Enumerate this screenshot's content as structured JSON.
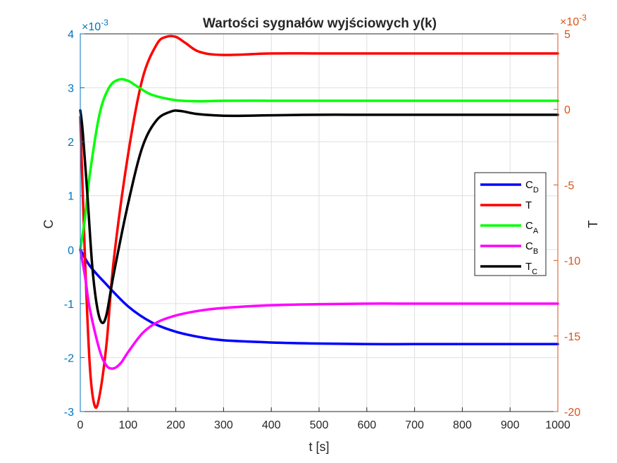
{
  "chart_data": {
    "type": "line",
    "title": "Wartości sygnałów wyjściowych y(k)",
    "xlabel": "t [s]",
    "xlim": [
      0,
      1000
    ],
    "x_ticks": [
      "0",
      "100",
      "200",
      "300",
      "400",
      "500",
      "600",
      "700",
      "800",
      "900",
      "1000"
    ],
    "grid": true,
    "legend_position": "right",
    "y_left": {
      "label": "C",
      "exponent_label": "×10",
      "exponent_power": "-3",
      "lim": [
        -3,
        4
      ],
      "ticks": [
        "-3",
        "-2",
        "-1",
        "0",
        "1",
        "2",
        "3",
        "4"
      ],
      "color": "#0072BD"
    },
    "y_right": {
      "label": "T",
      "exponent_label": "×10",
      "exponent_power": "-3",
      "lim": [
        -20,
        5
      ],
      "ticks": [
        "-20",
        "-15",
        "-10",
        "-5",
        "0",
        "5"
      ],
      "color": "#D95319"
    },
    "legend": [
      {
        "main": "C",
        "sub": "D",
        "color": "#0000FF"
      },
      {
        "main": "T",
        "sub": "",
        "color": "#FF0000"
      },
      {
        "main": "C",
        "sub": "A",
        "color": "#00FF00"
      },
      {
        "main": "C",
        "sub": "B",
        "color": "#FF00FF"
      },
      {
        "main": "T",
        "sub": "C",
        "color": "#000000"
      }
    ],
    "series": [
      {
        "axis": "left",
        "unit": "1e-3",
        "color": "#0000FF",
        "x": [
          0,
          20,
          50,
          100,
          150,
          200,
          250,
          300,
          400,
          500,
          600,
          700,
          800,
          900,
          1000
        ],
        "y": [
          0,
          -0.3,
          -0.6,
          -1.05,
          -1.35,
          -1.52,
          -1.62,
          -1.68,
          -1.72,
          -1.74,
          -1.75,
          -1.75,
          -1.75,
          -1.75,
          -1.75
        ]
      },
      {
        "axis": "right",
        "unit": "1e-3",
        "color": "#FF0000",
        "x": [
          0,
          10,
          20,
          30,
          40,
          55,
          70,
          100,
          130,
          160,
          180,
          200,
          220,
          250,
          300,
          400,
          500,
          600,
          700,
          800,
          900,
          1000
        ],
        "y": [
          -0.5,
          -10,
          -17,
          -19.6,
          -19,
          -15.5,
          -10,
          -3,
          2,
          4.3,
          4.8,
          4.8,
          4.4,
          3.8,
          3.6,
          3.7,
          3.7,
          3.7,
          3.7,
          3.7,
          3.7,
          3.7
        ]
      },
      {
        "axis": "left",
        "unit": "1e-3",
        "color": "#00FF00",
        "x": [
          0,
          10,
          20,
          40,
          60,
          80,
          100,
          120,
          150,
          200,
          250,
          300,
          400,
          500,
          600,
          700,
          800,
          900,
          1000
        ],
        "y": [
          0,
          0.6,
          1.4,
          2.5,
          3.0,
          3.15,
          3.13,
          3.02,
          2.87,
          2.77,
          2.75,
          2.76,
          2.76,
          2.76,
          2.76,
          2.76,
          2.76,
          2.76,
          2.76
        ]
      },
      {
        "axis": "left",
        "unit": "1e-3",
        "color": "#FF00FF",
        "x": [
          0,
          10,
          20,
          40,
          55,
          70,
          85,
          100,
          130,
          160,
          200,
          250,
          300,
          400,
          500,
          600,
          700,
          800,
          900,
          1000
        ],
        "y": [
          0,
          -0.5,
          -1.1,
          -1.85,
          -2.15,
          -2.2,
          -2.1,
          -1.9,
          -1.55,
          -1.35,
          -1.22,
          -1.13,
          -1.08,
          -1.03,
          -1.01,
          -1.0,
          -1.0,
          -1.0,
          -1.0,
          -1.0
        ]
      },
      {
        "axis": "left",
        "unit": "1e-3",
        "color": "#000000",
        "x": [
          0,
          5,
          15,
          25,
          35,
          45,
          55,
          70,
          100,
          130,
          160,
          190,
          210,
          240,
          280,
          320,
          400,
          500,
          600,
          700,
          800,
          900,
          1000
        ],
        "y": [
          2.58,
          2.2,
          1.0,
          -0.3,
          -1.05,
          -1.35,
          -1.2,
          -0.45,
          0.85,
          1.9,
          2.4,
          2.56,
          2.57,
          2.52,
          2.49,
          2.48,
          2.49,
          2.5,
          2.5,
          2.5,
          2.5,
          2.5,
          2.5
        ]
      }
    ]
  }
}
